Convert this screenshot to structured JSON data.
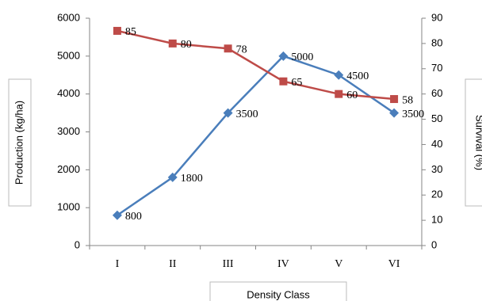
{
  "chart_data": {
    "type": "line",
    "categories": [
      "I",
      "II",
      "III",
      "IV",
      "V",
      "VI"
    ],
    "y_label": "Production (kg/ha)",
    "y2_label": "Survival (%)",
    "x_label": "Density Class",
    "ylim": [
      0,
      6000
    ],
    "yticks": [
      0,
      1000,
      2000,
      3000,
      4000,
      5000,
      6000
    ],
    "y2lim": [
      0,
      90
    ],
    "y2ticks": [
      0,
      10,
      20,
      30,
      40,
      50,
      60,
      70,
      80,
      90
    ],
    "grid": false,
    "series": [
      {
        "color": "#4a7ebb",
        "marker": "diamond",
        "values": [
          800,
          1800,
          3500,
          5000,
          4500,
          3500
        ]
      },
      {
        "color": "#be4b48",
        "marker": "square",
        "axis": "y2",
        "values": [
          85,
          80,
          78,
          65,
          60,
          58
        ]
      }
    ]
  }
}
